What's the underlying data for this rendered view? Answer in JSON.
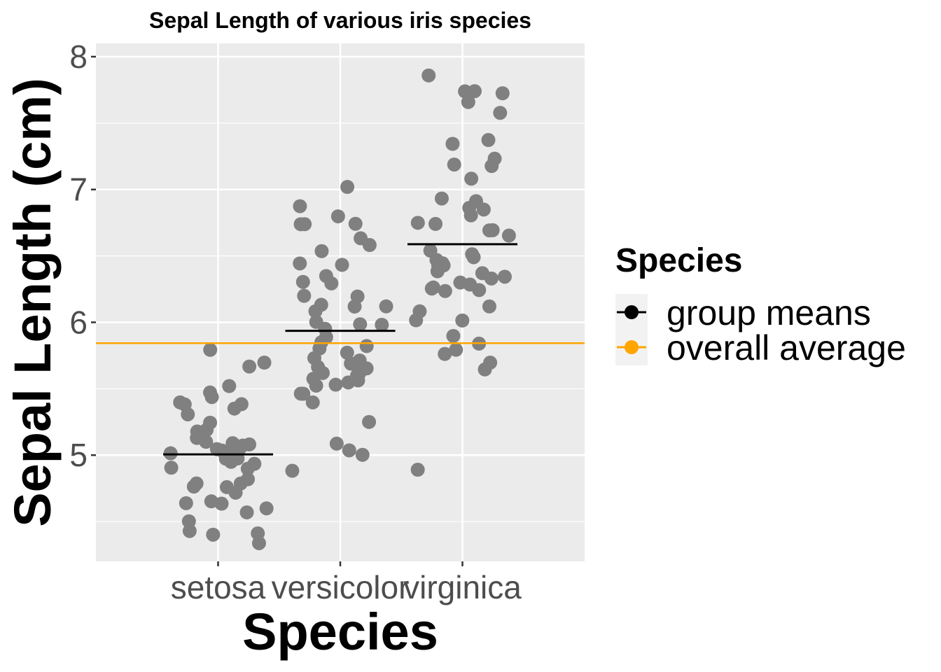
{
  "chart_data": {
    "type": "scatter",
    "title": "Sepal Length of various iris species",
    "xlabel": "Species",
    "ylabel": "Sepal Length (cm)",
    "categories": [
      "setosa",
      "versicolor",
      "virginica"
    ],
    "ylim": [
      4.2,
      8.1
    ],
    "yticks": [
      5,
      6,
      7,
      8
    ],
    "grid": true,
    "point_color": "#808080",
    "series": [
      {
        "category": "setosa",
        "values": [
          5.1,
          4.9,
          4.7,
          4.6,
          5.0,
          5.4,
          4.6,
          5.0,
          4.4,
          4.9,
          5.4,
          4.8,
          4.8,
          4.3,
          5.8,
          5.7,
          5.4,
          5.1,
          5.7,
          5.1,
          5.4,
          5.1,
          4.6,
          5.1,
          4.8,
          5.0,
          5.0,
          5.2,
          5.2,
          4.7,
          4.8,
          5.4,
          5.2,
          5.5,
          4.9,
          5.0,
          5.5,
          4.9,
          4.4,
          5.1,
          5.0,
          4.5,
          4.4,
          5.0,
          5.1,
          4.8,
          5.1,
          4.6,
          5.3,
          5.0
        ]
      },
      {
        "category": "versicolor",
        "values": [
          7.0,
          6.4,
          6.9,
          5.5,
          6.5,
          5.7,
          6.3,
          4.9,
          6.6,
          5.2,
          5.0,
          5.9,
          6.0,
          6.1,
          5.6,
          6.7,
          5.6,
          5.8,
          6.2,
          5.6,
          5.9,
          6.1,
          6.3,
          6.1,
          6.4,
          6.6,
          6.8,
          6.7,
          6.0,
          5.7,
          5.5,
          5.5,
          5.8,
          6.0,
          5.4,
          6.0,
          6.7,
          6.3,
          5.6,
          5.5,
          5.5,
          6.1,
          5.8,
          5.0,
          5.6,
          5.7,
          5.7,
          6.2,
          5.1,
          5.7
        ]
      },
      {
        "category": "virginica",
        "values": [
          6.3,
          5.8,
          7.1,
          6.3,
          6.5,
          7.6,
          4.9,
          7.3,
          6.7,
          7.2,
          6.5,
          6.4,
          6.8,
          5.7,
          5.8,
          6.4,
          6.5,
          7.7,
          7.7,
          6.0,
          6.9,
          5.6,
          7.7,
          6.3,
          6.7,
          7.2,
          6.2,
          6.1,
          6.4,
          7.2,
          7.4,
          7.9,
          6.4,
          6.3,
          6.1,
          7.7,
          6.3,
          6.4,
          6.0,
          6.9,
          6.7,
          6.9,
          5.8,
          6.8,
          6.7,
          6.7,
          6.3,
          6.5,
          6.2,
          5.9
        ]
      }
    ],
    "group_means": [
      5.006,
      5.936,
      6.588
    ],
    "overall_average": 5.843,
    "legend": {
      "title": "Species",
      "position": "right",
      "items": [
        {
          "label": "group means",
          "color": "#000000"
        },
        {
          "label": "overall average",
          "color": "#FFA500"
        }
      ]
    },
    "colors": {
      "panel": "#EBEBEB",
      "grid": "#FFFFFF",
      "mean_line": "#000000",
      "overall_line": "#FFA500"
    }
  }
}
